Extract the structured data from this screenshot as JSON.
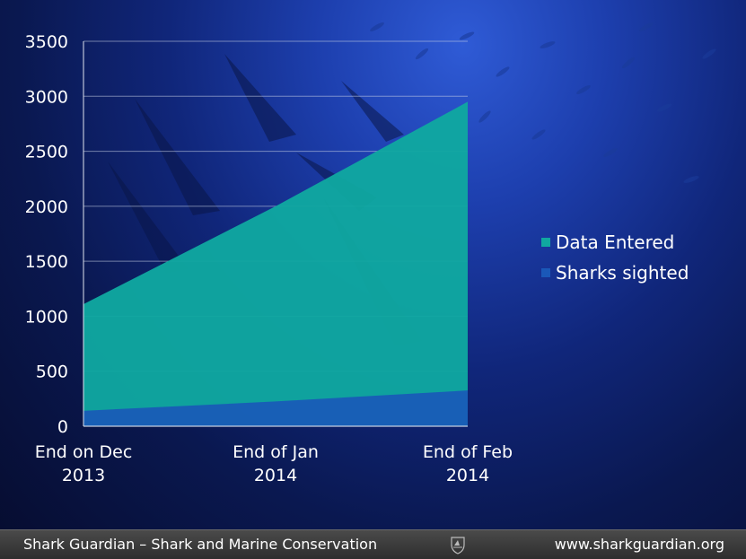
{
  "chart_data": {
    "type": "area",
    "categories": [
      "End on Dec 2013",
      "End of Jan 2014",
      "End of Feb 2014"
    ],
    "category_lines": [
      [
        "End on Dec",
        "2013"
      ],
      [
        "End of Jan",
        "2014"
      ],
      [
        "End of Feb",
        "2014"
      ]
    ],
    "series": [
      {
        "name": "Data Entered",
        "values": [
          1110,
          2000,
          2950
        ],
        "color": "#10a8a0"
      },
      {
        "name": "Sharks sighted",
        "values": [
          140,
          225,
          325
        ],
        "color": "#1a58b8"
      }
    ],
    "yticks": [
      "0",
      "500",
      "1000",
      "1500",
      "2000",
      "2500",
      "3000",
      "3500"
    ],
    "ylim": [
      0,
      3500
    ],
    "grid": true,
    "legend_position": "right"
  },
  "footer": {
    "left_text": "Shark Guardian – Shark and Marine Conservation",
    "right_text": "www.sharkguardian.org",
    "logo_icon": "shark-guardian-logo-icon"
  }
}
